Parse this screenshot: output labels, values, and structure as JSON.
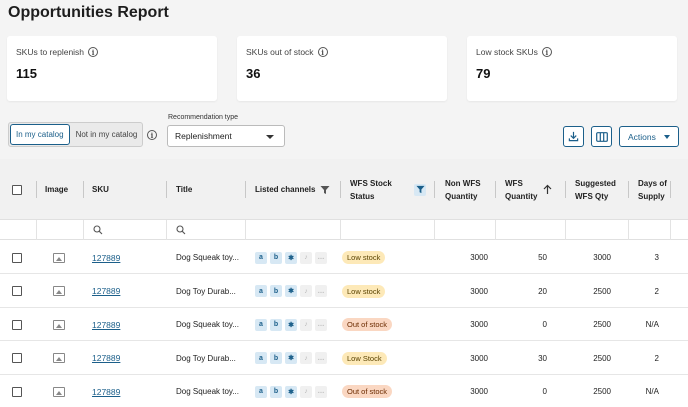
{
  "page_title": "Opportunities Report",
  "cards": [
    {
      "label": "SKUs to replenish",
      "value": "115"
    },
    {
      "label": "SKUs out of stock",
      "value": "36"
    },
    {
      "label": "Low stock SKUs",
      "value": "79"
    }
  ],
  "toggle": {
    "active": "In my catalog",
    "inactive": "Not in my catalog"
  },
  "recommendation": {
    "label": "Recommendation type",
    "value": "Replenishment"
  },
  "actions_label": "Actions",
  "columns": {
    "image": "Image",
    "sku": "SKU",
    "title": "Title",
    "listed_channels": "Listed channels",
    "wfs_stock_status": "WFS Stock Status",
    "non_wfs_qty": "Non WFS Quantity",
    "wfs_qty": "WFS Quantity",
    "suggested_wfs_qty": "Suggested WFS Qty",
    "days_of_supply": "Days of Supply"
  },
  "rows": [
    {
      "sku": "127889",
      "title": "Dog Squeak toy...",
      "status": "Low stock",
      "status_type": "low",
      "non_wfs": "3000",
      "wfs": "50",
      "suggested": "3000",
      "days": "3"
    },
    {
      "sku": "127889",
      "title": "Dog Toy Durab...",
      "status": "Low stock",
      "status_type": "low",
      "non_wfs": "3000",
      "wfs": "20",
      "suggested": "2500",
      "days": "2"
    },
    {
      "sku": "127889",
      "title": "Dog Squeak toy...",
      "status": "Out of stock",
      "status_type": "out",
      "non_wfs": "3000",
      "wfs": "0",
      "suggested": "2500",
      "days": "N/A"
    },
    {
      "sku": "127889",
      "title": "Dog Toy Durab...",
      "status": "Low Stock",
      "status_type": "low",
      "non_wfs": "3000",
      "wfs": "30",
      "suggested": "2500",
      "days": "2"
    },
    {
      "sku": "127889",
      "title": "Dog Squeak toy...",
      "status": "Out of stock",
      "status_type": "out",
      "non_wfs": "3000",
      "wfs": "0",
      "suggested": "2500",
      "days": "N/A"
    }
  ],
  "channel_icons": [
    "amazon-icon",
    "bag-icon",
    "walmart-spark-icon",
    "tiktok-icon",
    "more-icon"
  ],
  "colors": {
    "accent": "#1b5f8a",
    "low_stock": "#fde9b8",
    "out_of_stock": "#fad7c2"
  }
}
